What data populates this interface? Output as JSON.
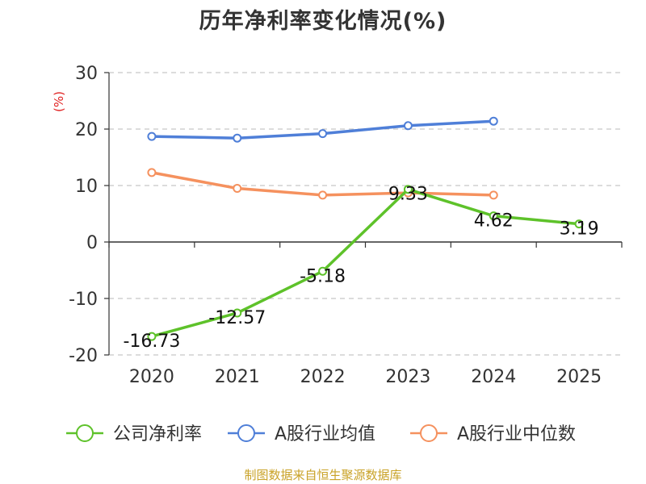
{
  "chart_data": {
    "type": "line",
    "title": "历年净利率变化情况(%)",
    "ylabel": "(%)",
    "xlabel": "",
    "categories": [
      "2020",
      "2021",
      "2022",
      "2023",
      "2024",
      "2025"
    ],
    "ylim": [
      -20,
      30
    ],
    "yticks": [
      "30",
      "20",
      "10",
      "0",
      "-10",
      "-20"
    ],
    "grid": true,
    "legend_position": "bottom",
    "series": [
      {
        "name": "公司净利率",
        "color": "#5ec22a",
        "values": [
          -16.73,
          -12.57,
          -5.18,
          9.33,
          4.62,
          3.19
        ],
        "labels": [
          "-16.73",
          "-12.57",
          "-5.18",
          "9.33",
          "4.62",
          "3.19"
        ]
      },
      {
        "name": "A股行业均值",
        "color": "#4f7fd8",
        "values": [
          18.7,
          18.4,
          19.2,
          20.6,
          21.4,
          null
        ]
      },
      {
        "name": "A股行业中位数",
        "color": "#f5915e",
        "values": [
          12.3,
          9.5,
          8.3,
          8.7,
          8.3,
          null
        ]
      }
    ],
    "source": "制图数据来自恒生聚源数据库"
  }
}
